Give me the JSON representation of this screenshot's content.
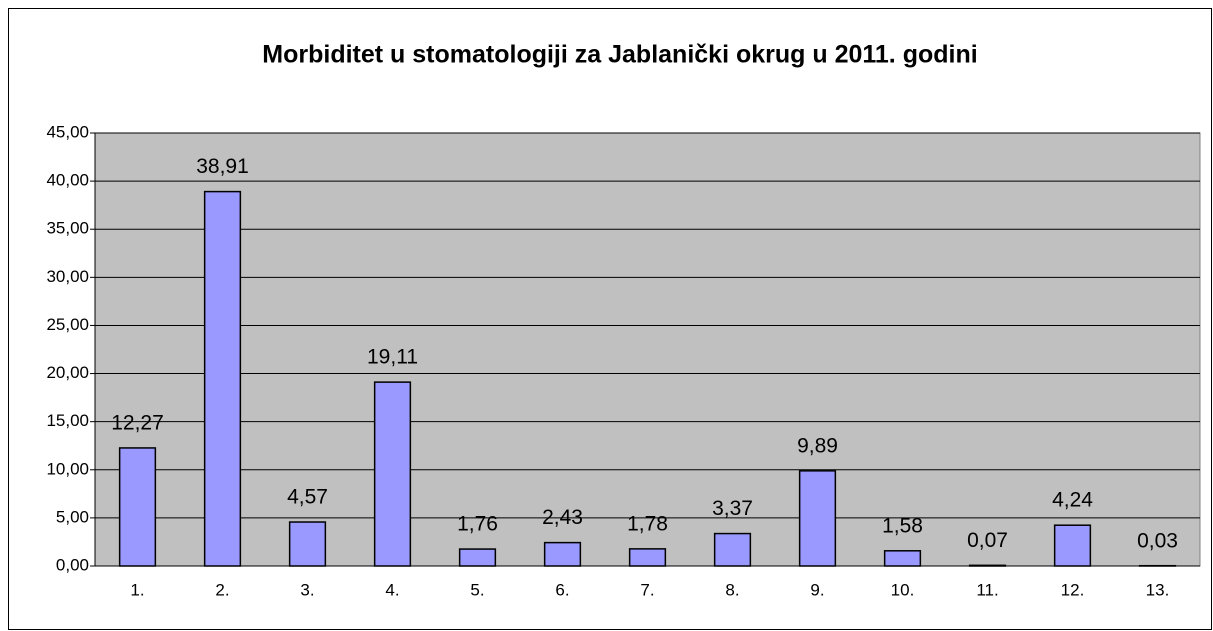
{
  "chart_data": {
    "type": "bar",
    "title": "Morbiditet u stomatologiji za Jablanički okrug u 2011. godini",
    "categories": [
      "1.",
      "2.",
      "3.",
      "4.",
      "5.",
      "6.",
      "7.",
      "8.",
      "9.",
      "10.",
      "11.",
      "12.",
      "13."
    ],
    "values": [
      12.27,
      38.91,
      4.57,
      19.11,
      1.76,
      2.43,
      1.78,
      3.37,
      9.89,
      1.58,
      0.07,
      4.24,
      0.03
    ],
    "value_labels": [
      "12,27",
      "38,91",
      "4,57",
      "19,11",
      "1,76",
      "2,43",
      "1,78",
      "3,37",
      "9,89",
      "1,58",
      "0,07",
      "4,24",
      "0,03"
    ],
    "color": "#9999ff",
    "ylim": [
      0,
      45
    ],
    "yticks": [
      {
        "value": 0,
        "label": "0,00"
      },
      {
        "value": 5,
        "label": "5,00"
      },
      {
        "value": 10,
        "label": "10,00"
      },
      {
        "value": 15,
        "label": "15,00"
      },
      {
        "value": 20,
        "label": "20,00"
      },
      {
        "value": 25,
        "label": "25,00"
      },
      {
        "value": 30,
        "label": "30,00"
      },
      {
        "value": 35,
        "label": "35,00"
      },
      {
        "value": 40,
        "label": "40,00"
      },
      {
        "value": 45,
        "label": "45,00"
      }
    ],
    "grid": true
  }
}
